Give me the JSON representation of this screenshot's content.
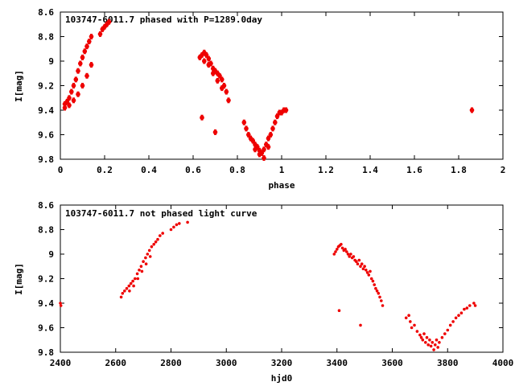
{
  "chart_data": [
    {
      "type": "scatter",
      "title": "103747-6011.7 phased with P=1289.0day",
      "xlabel": "phase",
      "ylabel": "I[mag]",
      "xlim": [
        0,
        2
      ],
      "ylim": [
        9.8,
        8.6
      ],
      "y_inverted": true,
      "xticks": [
        "0",
        "0.2",
        "0.4",
        "0.6",
        "0.8",
        "1",
        "1.2",
        "1.4",
        "1.6",
        "1.8",
        "2"
      ],
      "yticks": [
        "8.6",
        "8.8",
        "9",
        "9.2",
        "9.4",
        "9.6",
        "9.8"
      ],
      "grid": false,
      "legend": "none",
      "marker_color": "#ee0000",
      "series": [
        {
          "x": [
            0.02,
            0.03,
            0.04,
            0.05,
            0.06,
            0.07,
            0.08,
            0.09,
            0.1,
            0.11,
            0.12,
            0.13,
            0.14,
            0.02,
            0.04,
            0.06,
            0.08,
            0.1,
            0.12,
            0.14,
            0.18,
            0.19,
            0.2,
            0.21,
            0.22,
            0.63,
            0.64,
            0.65,
            0.66,
            0.67,
            0.68,
            0.69,
            0.7,
            0.71,
            0.72,
            0.73,
            0.74,
            0.75,
            0.76,
            0.65,
            0.67,
            0.69,
            0.71,
            0.73,
            0.64,
            0.7,
            0.83,
            0.84,
            0.85,
            0.86,
            0.87,
            0.88,
            0.89,
            0.9,
            0.91,
            0.92,
            0.93,
            0.94,
            0.95,
            0.96,
            0.97,
            0.98,
            0.99,
            1.0,
            1.01,
            1.02,
            0.88,
            0.9,
            0.92,
            0.94,
            1.86
          ],
          "y": [
            9.35,
            9.33,
            9.3,
            9.25,
            9.2,
            9.15,
            9.08,
            9.02,
            8.97,
            8.92,
            8.88,
            8.84,
            8.8,
            9.38,
            9.36,
            9.32,
            9.27,
            9.2,
            9.12,
            9.03,
            8.78,
            8.74,
            8.72,
            8.7,
            8.68,
            8.97,
            8.95,
            8.93,
            8.95,
            8.98,
            9.02,
            9.06,
            9.08,
            9.1,
            9.12,
            9.15,
            9.2,
            9.25,
            9.32,
            9.0,
            9.03,
            9.1,
            9.16,
            9.22,
            9.46,
            9.58,
            9.5,
            9.55,
            9.6,
            9.63,
            9.65,
            9.68,
            9.7,
            9.73,
            9.75,
            9.72,
            9.68,
            9.63,
            9.6,
            9.55,
            9.5,
            9.45,
            9.42,
            9.42,
            9.4,
            9.4,
            9.72,
            9.76,
            9.79,
            9.7,
            9.4
          ]
        }
      ]
    },
    {
      "type": "scatter",
      "title": "103747-6011.7 not phased light curve",
      "xlabel": "hjd0",
      "ylabel": "I[mag]",
      "xlim": [
        2400,
        4000
      ],
      "ylim": [
        9.8,
        8.6
      ],
      "y_inverted": true,
      "xticks": [
        "2400",
        "2600",
        "2800",
        "3000",
        "3200",
        "3400",
        "3600",
        "3800",
        "4000"
      ],
      "yticks": [
        "8.6",
        "8.8",
        "9",
        "9.2",
        "9.4",
        "9.6",
        "9.8"
      ],
      "grid": false,
      "legend": "none",
      "marker_color": "#ee0000",
      "series": [
        {
          "x": [
            2400,
            2402,
            2620,
            2625,
            2632,
            2640,
            2648,
            2655,
            2662,
            2670,
            2678,
            2685,
            2692,
            2700,
            2708,
            2715,
            2722,
            2730,
            2738,
            2745,
            2752,
            2760,
            2770,
            2800,
            2810,
            2820,
            2830,
            2860,
            2650,
            2665,
            2680,
            2695,
            2710,
            2725,
            3390,
            3395,
            3400,
            3405,
            3410,
            3415,
            3420,
            3425,
            3430,
            3435,
            3440,
            3445,
            3450,
            3455,
            3460,
            3465,
            3470,
            3475,
            3480,
            3485,
            3490,
            3495,
            3500,
            3505,
            3510,
            3515,
            3520,
            3525,
            3530,
            3535,
            3540,
            3545,
            3550,
            3555,
            3560,
            3565,
            3408,
            3485,
            3650,
            3660,
            3665,
            3670,
            3680,
            3690,
            3700,
            3705,
            3710,
            3715,
            3720,
            3725,
            3730,
            3735,
            3740,
            3745,
            3750,
            3755,
            3760,
            3765,
            3770,
            3780,
            3790,
            3800,
            3810,
            3820,
            3830,
            3840,
            3850,
            3860,
            3870,
            3880,
            3895,
            3900
          ],
          "y": [
            9.4,
            9.42,
            9.35,
            9.32,
            9.3,
            9.28,
            9.26,
            9.24,
            9.22,
            9.2,
            9.16,
            9.13,
            9.1,
            9.06,
            9.03,
            9.0,
            8.97,
            8.94,
            8.92,
            8.9,
            8.88,
            8.85,
            8.83,
            8.8,
            8.78,
            8.76,
            8.75,
            8.74,
            9.3,
            9.26,
            9.2,
            9.14,
            9.08,
            9.02,
            9.0,
            8.98,
            8.96,
            8.94,
            8.93,
            8.92,
            8.95,
            8.97,
            8.96,
            8.98,
            9.0,
            9.02,
            9.0,
            9.03,
            9.02,
            9.05,
            9.06,
            9.08,
            9.05,
            9.1,
            9.08,
            9.12,
            9.1,
            9.13,
            9.15,
            9.17,
            9.14,
            9.2,
            9.22,
            9.25,
            9.28,
            9.3,
            9.32,
            9.35,
            9.38,
            9.42,
            9.46,
            9.58,
            9.52,
            9.5,
            9.55,
            9.6,
            9.58,
            9.63,
            9.66,
            9.68,
            9.7,
            9.65,
            9.72,
            9.68,
            9.74,
            9.7,
            9.75,
            9.72,
            9.78,
            9.74,
            9.7,
            9.76,
            9.72,
            9.68,
            9.65,
            9.62,
            9.58,
            9.55,
            9.52,
            9.5,
            9.48,
            9.45,
            9.44,
            9.42,
            9.4,
            9.42
          ]
        }
      ]
    }
  ]
}
